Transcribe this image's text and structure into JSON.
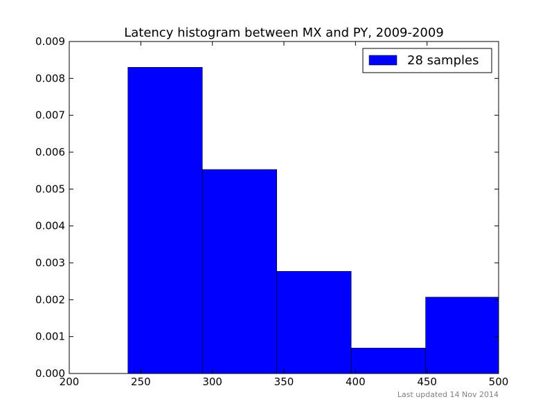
{
  "chart_data": {
    "type": "bar",
    "title": "Latency histogram between MX and PY, 2009-2009",
    "xlabel": "",
    "ylabel": "",
    "xlim": [
      200,
      500
    ],
    "ylim": [
      0,
      0.009
    ],
    "x_ticks": [
      "200",
      "250",
      "300",
      "350",
      "400",
      "450",
      "500"
    ],
    "y_ticks": [
      "0.000",
      "0.001",
      "0.002",
      "0.003",
      "0.004",
      "0.005",
      "0.006",
      "0.007",
      "0.008",
      "0.009"
    ],
    "bins": [
      {
        "x0": 241,
        "x1": 293,
        "value": 0.0083
      },
      {
        "x0": 293,
        "x1": 345,
        "value": 0.00553
      },
      {
        "x0": 345,
        "x1": 397,
        "value": 0.00277
      },
      {
        "x0": 397,
        "x1": 449,
        "value": 0.00069
      },
      {
        "x0": 449,
        "x1": 500,
        "value": 0.00207
      }
    ],
    "series": [
      {
        "name": "28 samples",
        "color": "#0000ff"
      }
    ],
    "legend_position": "top-right",
    "grid": false
  },
  "footer": {
    "updated_text": "Last updated 14 Nov 2014"
  }
}
